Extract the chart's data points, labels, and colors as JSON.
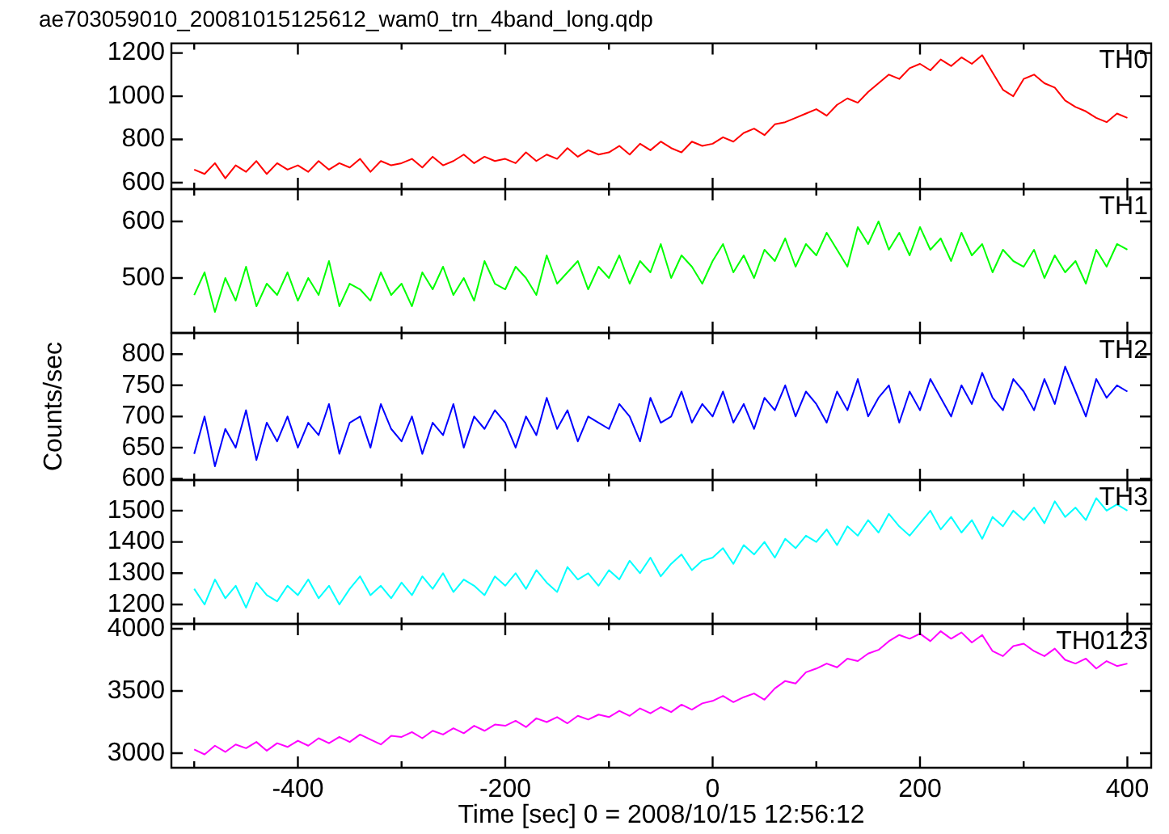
{
  "chart_data": [
    {
      "type": "line",
      "title": "ae703059010_20081015125612_wam0_trn_4band_long.qdp",
      "tick_labels": "y",
      "grid": false,
      "legend": false,
      "marker": "none",
      "x": [
        -500,
        -490,
        -480,
        -470,
        -460,
        -450,
        -440,
        -430,
        -420,
        -410,
        -400,
        -390,
        -380,
        -370,
        -360,
        -350,
        -340,
        -330,
        -320,
        -310,
        -300,
        -290,
        -280,
        -270,
        -260,
        -250,
        -240,
        -230,
        -220,
        -210,
        -200,
        -190,
        -180,
        -170,
        -160,
        -150,
        -140,
        -130,
        -120,
        -110,
        -100,
        -90,
        -80,
        -70,
        -60,
        -50,
        -40,
        -30,
        -20,
        -10,
        0,
        10,
        20,
        30,
        40,
        50,
        60,
        70,
        80,
        90,
        100,
        110,
        120,
        130,
        140,
        150,
        160,
        170,
        180,
        190,
        200,
        210,
        220,
        230,
        240,
        250,
        260,
        270,
        280,
        290,
        300,
        310,
        320,
        330,
        340,
        350,
        360,
        370,
        380,
        390,
        400
      ],
      "xlim": [
        -522,
        423
      ],
      "xticks": [
        {
          "value": -500,
          "label": null
        },
        -400,
        {
          "value": -300,
          "label": null
        },
        -200,
        {
          "value": -100,
          "label": null
        },
        0,
        {
          "value": 100,
          "label": null
        },
        200,
        {
          "value": 300,
          "label": null
        },
        400
      ],
      "ylim": [
        570,
        1245
      ],
      "yticks": [
        600,
        800,
        1000,
        1200
      ],
      "series": [
        {
          "name": "TH0",
          "color": "#ff0000",
          "values": [
            660,
            640,
            690,
            620,
            680,
            650,
            700,
            640,
            690,
            660,
            680,
            650,
            700,
            660,
            690,
            670,
            710,
            650,
            700,
            680,
            690,
            710,
            670,
            720,
            680,
            700,
            730,
            690,
            720,
            700,
            710,
            690,
            740,
            700,
            730,
            710,
            760,
            720,
            750,
            730,
            740,
            770,
            730,
            780,
            750,
            790,
            760,
            740,
            790,
            770,
            780,
            810,
            790,
            830,
            850,
            820,
            870,
            880,
            900,
            920,
            940,
            910,
            960,
            990,
            970,
            1020,
            1060,
            1100,
            1080,
            1130,
            1150,
            1120,
            1170,
            1140,
            1180,
            1150,
            1190,
            1110,
            1030,
            1000,
            1080,
            1100,
            1060,
            1040,
            980,
            950,
            930,
            900,
            880,
            920,
            900
          ]
        }
      ]
    },
    {
      "type": "line",
      "tick_labels": "y",
      "grid": false,
      "legend": false,
      "marker": "none",
      "x": [
        -500,
        -490,
        -480,
        -470,
        -460,
        -450,
        -440,
        -430,
        -420,
        -410,
        -400,
        -390,
        -380,
        -370,
        -360,
        -350,
        -340,
        -330,
        -320,
        -310,
        -300,
        -290,
        -280,
        -270,
        -260,
        -250,
        -240,
        -230,
        -220,
        -210,
        -200,
        -190,
        -180,
        -170,
        -160,
        -150,
        -140,
        -130,
        -120,
        -110,
        -100,
        -90,
        -80,
        -70,
        -60,
        -50,
        -40,
        -30,
        -20,
        -10,
        0,
        10,
        20,
        30,
        40,
        50,
        60,
        70,
        80,
        90,
        100,
        110,
        120,
        130,
        140,
        150,
        160,
        170,
        180,
        190,
        200,
        210,
        220,
        230,
        240,
        250,
        260,
        270,
        280,
        290,
        300,
        310,
        320,
        330,
        340,
        350,
        360,
        370,
        380,
        390,
        400
      ],
      "xlim": [
        -522,
        423
      ],
      "xticks": [
        {
          "value": -500,
          "label": null
        },
        -400,
        {
          "value": -300,
          "label": null
        },
        -200,
        {
          "value": -100,
          "label": null
        },
        0,
        {
          "value": 100,
          "label": null
        },
        200,
        {
          "value": 300,
          "label": null
        },
        400
      ],
      "ylim": [
        403,
        657
      ],
      "yticks": [
        500,
        600
      ],
      "series": [
        {
          "name": "TH1",
          "color": "#00ff00",
          "values": [
            470,
            510,
            440,
            500,
            460,
            520,
            450,
            490,
            470,
            510,
            460,
            500,
            470,
            530,
            450,
            490,
            480,
            460,
            510,
            470,
            490,
            450,
            510,
            480,
            520,
            470,
            500,
            460,
            530,
            490,
            480,
            520,
            500,
            470,
            540,
            490,
            510,
            530,
            480,
            520,
            500,
            540,
            490,
            530,
            510,
            560,
            500,
            540,
            520,
            490,
            530,
            560,
            510,
            540,
            500,
            550,
            530,
            570,
            520,
            560,
            540,
            580,
            550,
            520,
            590,
            560,
            600,
            550,
            580,
            540,
            590,
            550,
            570,
            530,
            580,
            540,
            560,
            510,
            550,
            530,
            520,
            550,
            500,
            540,
            510,
            530,
            490,
            550,
            520,
            560,
            550
          ]
        }
      ]
    },
    {
      "type": "line",
      "ylabel": "Counts/sec",
      "tick_labels": "y",
      "grid": false,
      "legend": false,
      "marker": "none",
      "x": [
        -500,
        -490,
        -480,
        -470,
        -460,
        -450,
        -440,
        -430,
        -420,
        -410,
        -400,
        -390,
        -380,
        -370,
        -360,
        -350,
        -340,
        -330,
        -320,
        -310,
        -300,
        -290,
        -280,
        -270,
        -260,
        -250,
        -240,
        -230,
        -220,
        -210,
        -200,
        -190,
        -180,
        -170,
        -160,
        -150,
        -140,
        -130,
        -120,
        -110,
        -100,
        -90,
        -80,
        -70,
        -60,
        -50,
        -40,
        -30,
        -20,
        -10,
        0,
        10,
        20,
        30,
        40,
        50,
        60,
        70,
        80,
        90,
        100,
        110,
        120,
        130,
        140,
        150,
        160,
        170,
        180,
        190,
        200,
        210,
        220,
        230,
        240,
        250,
        260,
        270,
        280,
        290,
        300,
        310,
        320,
        330,
        340,
        350,
        360,
        370,
        380,
        390,
        400
      ],
      "xlim": [
        -522,
        423
      ],
      "xticks": [
        {
          "value": -500,
          "label": null
        },
        -400,
        {
          "value": -300,
          "label": null
        },
        -200,
        {
          "value": -100,
          "label": null
        },
        0,
        {
          "value": 100,
          "label": null
        },
        200,
        {
          "value": 300,
          "label": null
        },
        400
      ],
      "ylim": [
        598,
        834
      ],
      "yticks": [
        600,
        650,
        700,
        750,
        800
      ],
      "series": [
        {
          "name": "TH2",
          "color": "#0000ff",
          "values": [
            640,
            700,
            620,
            680,
            650,
            710,
            630,
            690,
            660,
            700,
            650,
            690,
            670,
            720,
            640,
            690,
            700,
            650,
            720,
            680,
            660,
            700,
            640,
            690,
            670,
            720,
            650,
            700,
            680,
            710,
            690,
            650,
            700,
            670,
            730,
            680,
            710,
            660,
            700,
            690,
            680,
            720,
            700,
            660,
            730,
            690,
            700,
            740,
            690,
            720,
            700,
            740,
            690,
            720,
            680,
            730,
            710,
            750,
            700,
            740,
            720,
            690,
            740,
            710,
            760,
            700,
            730,
            750,
            690,
            740,
            710,
            760,
            730,
            700,
            750,
            720,
            770,
            730,
            710,
            760,
            740,
            710,
            760,
            720,
            780,
            740,
            700,
            760,
            730,
            750,
            740
          ]
        }
      ]
    },
    {
      "type": "line",
      "tick_labels": "y",
      "grid": false,
      "legend": false,
      "marker": "none",
      "x": [
        -500,
        -490,
        -480,
        -470,
        -460,
        -450,
        -440,
        -430,
        -420,
        -410,
        -400,
        -390,
        -380,
        -370,
        -360,
        -350,
        -340,
        -330,
        -320,
        -310,
        -300,
        -290,
        -280,
        -270,
        -260,
        -250,
        -240,
        -230,
        -220,
        -210,
        -200,
        -190,
        -180,
        -170,
        -160,
        -150,
        -140,
        -130,
        -120,
        -110,
        -100,
        -90,
        -80,
        -70,
        -60,
        -50,
        -40,
        -30,
        -20,
        -10,
        0,
        10,
        20,
        30,
        40,
        50,
        60,
        70,
        80,
        90,
        100,
        110,
        120,
        130,
        140,
        150,
        160,
        170,
        180,
        190,
        200,
        210,
        220,
        230,
        240,
        250,
        260,
        270,
        280,
        290,
        300,
        310,
        320,
        330,
        340,
        350,
        360,
        370,
        380,
        390,
        400
      ],
      "xlim": [
        -522,
        423
      ],
      "xticks": [
        {
          "value": -500,
          "label": null
        },
        -400,
        {
          "value": -300,
          "label": null
        },
        -200,
        {
          "value": -100,
          "label": null
        },
        0,
        {
          "value": 100,
          "label": null
        },
        200,
        {
          "value": 300,
          "label": null
        },
        400
      ],
      "ylim": [
        1138,
        1598
      ],
      "yticks": [
        1200,
        1300,
        1400,
        1500
      ],
      "series": [
        {
          "name": "TH3",
          "color": "#00ffff",
          "values": [
            1250,
            1200,
            1280,
            1220,
            1260,
            1190,
            1270,
            1230,
            1210,
            1260,
            1230,
            1280,
            1220,
            1260,
            1200,
            1250,
            1290,
            1230,
            1260,
            1220,
            1270,
            1230,
            1290,
            1250,
            1300,
            1240,
            1280,
            1260,
            1230,
            1290,
            1260,
            1300,
            1250,
            1310,
            1270,
            1240,
            1320,
            1280,
            1300,
            1260,
            1310,
            1280,
            1340,
            1300,
            1350,
            1290,
            1330,
            1360,
            1310,
            1340,
            1350,
            1380,
            1330,
            1390,
            1360,
            1400,
            1350,
            1410,
            1380,
            1420,
            1400,
            1440,
            1390,
            1450,
            1420,
            1470,
            1430,
            1490,
            1450,
            1420,
            1460,
            1500,
            1440,
            1480,
            1430,
            1470,
            1410,
            1480,
            1450,
            1500,
            1470,
            1510,
            1460,
            1530,
            1480,
            1510,
            1470,
            1540,
            1500,
            1520,
            1500
          ]
        }
      ]
    },
    {
      "type": "line",
      "xlabel": "Time [sec] 0 = 2008/10/15 12:56:12",
      "grid": false,
      "legend": false,
      "marker": "none",
      "x": [
        -500,
        -490,
        -480,
        -470,
        -460,
        -450,
        -440,
        -430,
        -420,
        -410,
        -400,
        -390,
        -380,
        -370,
        -360,
        -350,
        -340,
        -330,
        -320,
        -310,
        -300,
        -290,
        -280,
        -270,
        -260,
        -250,
        -240,
        -230,
        -220,
        -210,
        -200,
        -190,
        -180,
        -170,
        -160,
        -150,
        -140,
        -130,
        -120,
        -110,
        -100,
        -90,
        -80,
        -70,
        -60,
        -50,
        -40,
        -30,
        -20,
        -10,
        0,
        10,
        20,
        30,
        40,
        50,
        60,
        70,
        80,
        90,
        100,
        110,
        120,
        130,
        140,
        150,
        160,
        170,
        180,
        190,
        200,
        210,
        220,
        230,
        240,
        250,
        260,
        270,
        280,
        290,
        300,
        310,
        320,
        330,
        340,
        350,
        360,
        370,
        380,
        390,
        400
      ],
      "xlim": [
        -522,
        423
      ],
      "xticks": [
        {
          "value": -500,
          "label": null
        },
        -400,
        {
          "value": -300,
          "label": null
        },
        -200,
        {
          "value": -100,
          "label": null
        },
        0,
        {
          "value": 100,
          "label": null
        },
        200,
        {
          "value": 300,
          "label": null
        },
        400
      ],
      "ylim": [
        2883,
        4039
      ],
      "yticks": [
        3000,
        3500,
        4000
      ],
      "series": [
        {
          "name": "TH0123",
          "color": "#ff00ff",
          "values": [
            3030,
            2990,
            3060,
            3010,
            3070,
            3040,
            3090,
            3020,
            3080,
            3050,
            3100,
            3060,
            3120,
            3080,
            3130,
            3090,
            3150,
            3110,
            3070,
            3140,
            3130,
            3170,
            3120,
            3180,
            3150,
            3200,
            3160,
            3220,
            3180,
            3230,
            3220,
            3260,
            3210,
            3280,
            3250,
            3290,
            3240,
            3300,
            3270,
            3310,
            3290,
            3340,
            3300,
            3360,
            3320,
            3370,
            3330,
            3390,
            3350,
            3400,
            3420,
            3460,
            3410,
            3450,
            3480,
            3430,
            3520,
            3580,
            3560,
            3650,
            3680,
            3720,
            3690,
            3760,
            3740,
            3800,
            3830,
            3900,
            3950,
            3920,
            3960,
            3900,
            3980,
            3920,
            3970,
            3890,
            3950,
            3820,
            3780,
            3860,
            3880,
            3820,
            3780,
            3840,
            3750,
            3720,
            3760,
            3680,
            3740,
            3700,
            3720
          ]
        }
      ]
    }
  ]
}
